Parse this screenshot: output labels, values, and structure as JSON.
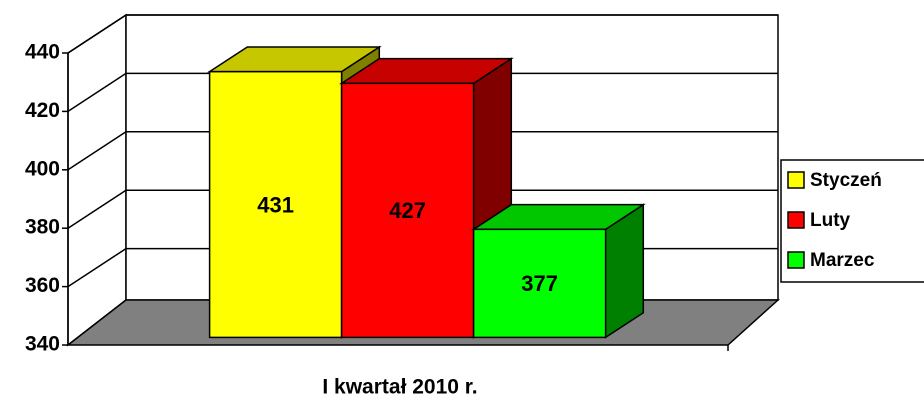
{
  "chart_data": {
    "type": "bar3d",
    "categories": [
      "I kwartał 2010 r."
    ],
    "series": [
      {
        "name": "Styczeń",
        "color": "#ffff00",
        "values": [
          431
        ]
      },
      {
        "name": "Luty",
        "color": "#ff0000",
        "values": [
          427
        ]
      },
      {
        "name": "Marzec",
        "color": "#00ff00",
        "values": [
          377
        ]
      }
    ],
    "ylim": [
      340,
      440
    ],
    "yticks": [
      340,
      360,
      380,
      400,
      420,
      440
    ],
    "grid": true,
    "legend": "right"
  }
}
